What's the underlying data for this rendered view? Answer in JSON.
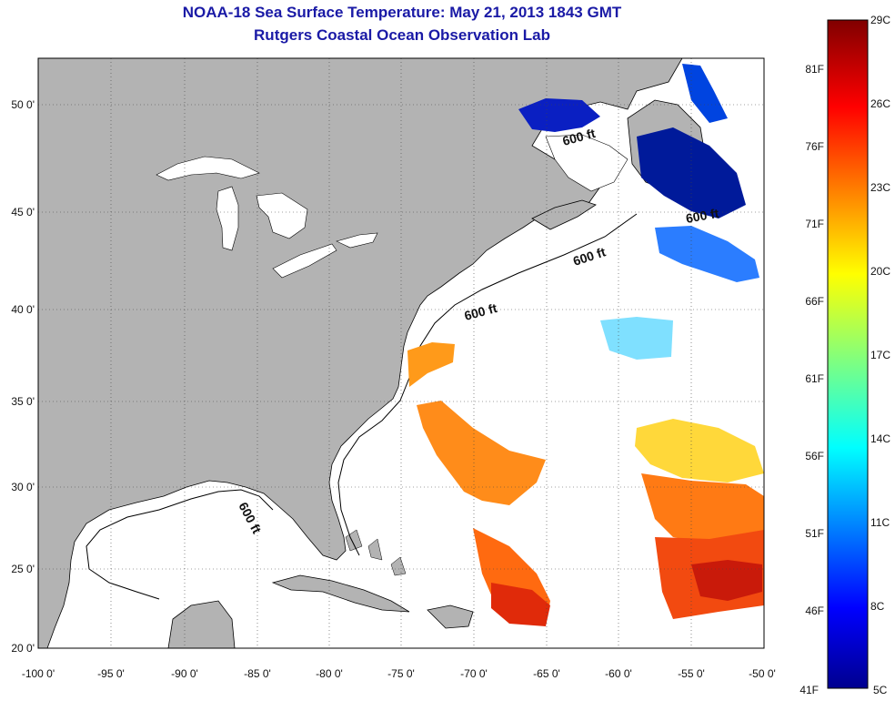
{
  "title": "NOAA-18 Sea Surface Temperature:  May 21, 2013 1843 GMT",
  "subtitle": "Rutgers Coastal Ocean Observation Lab",
  "map": {
    "lon_range": [
      -100,
      -50
    ],
    "lat_range": [
      20,
      52.5
    ],
    "lon_ticks": [
      "-100 0'",
      "-95 0'",
      "-90 0'",
      "-85 0'",
      "-80 0'",
      "-75 0'",
      "-70 0'",
      "-65 0'",
      "-60 0'",
      "-55 0'",
      "-50 0'"
    ],
    "lat_ticks": [
      "50 0'",
      "45 0'",
      "40 0'",
      "35 0'",
      "30 0'",
      "25 0'",
      "20 0'"
    ],
    "contour_label": "600 ft",
    "land_color": "#b3b3b3",
    "grid": true
  },
  "colorbar": {
    "celsius_labels": [
      "29C",
      "26C",
      "23C",
      "20C",
      "17C",
      "14C",
      "11C",
      "8C",
      "5C"
    ],
    "fahrenheit_labels": [
      "81F",
      "76F",
      "71F",
      "66F",
      "61F",
      "56F",
      "51F",
      "46F",
      "41F"
    ],
    "range_c": [
      5,
      29
    ]
  }
}
